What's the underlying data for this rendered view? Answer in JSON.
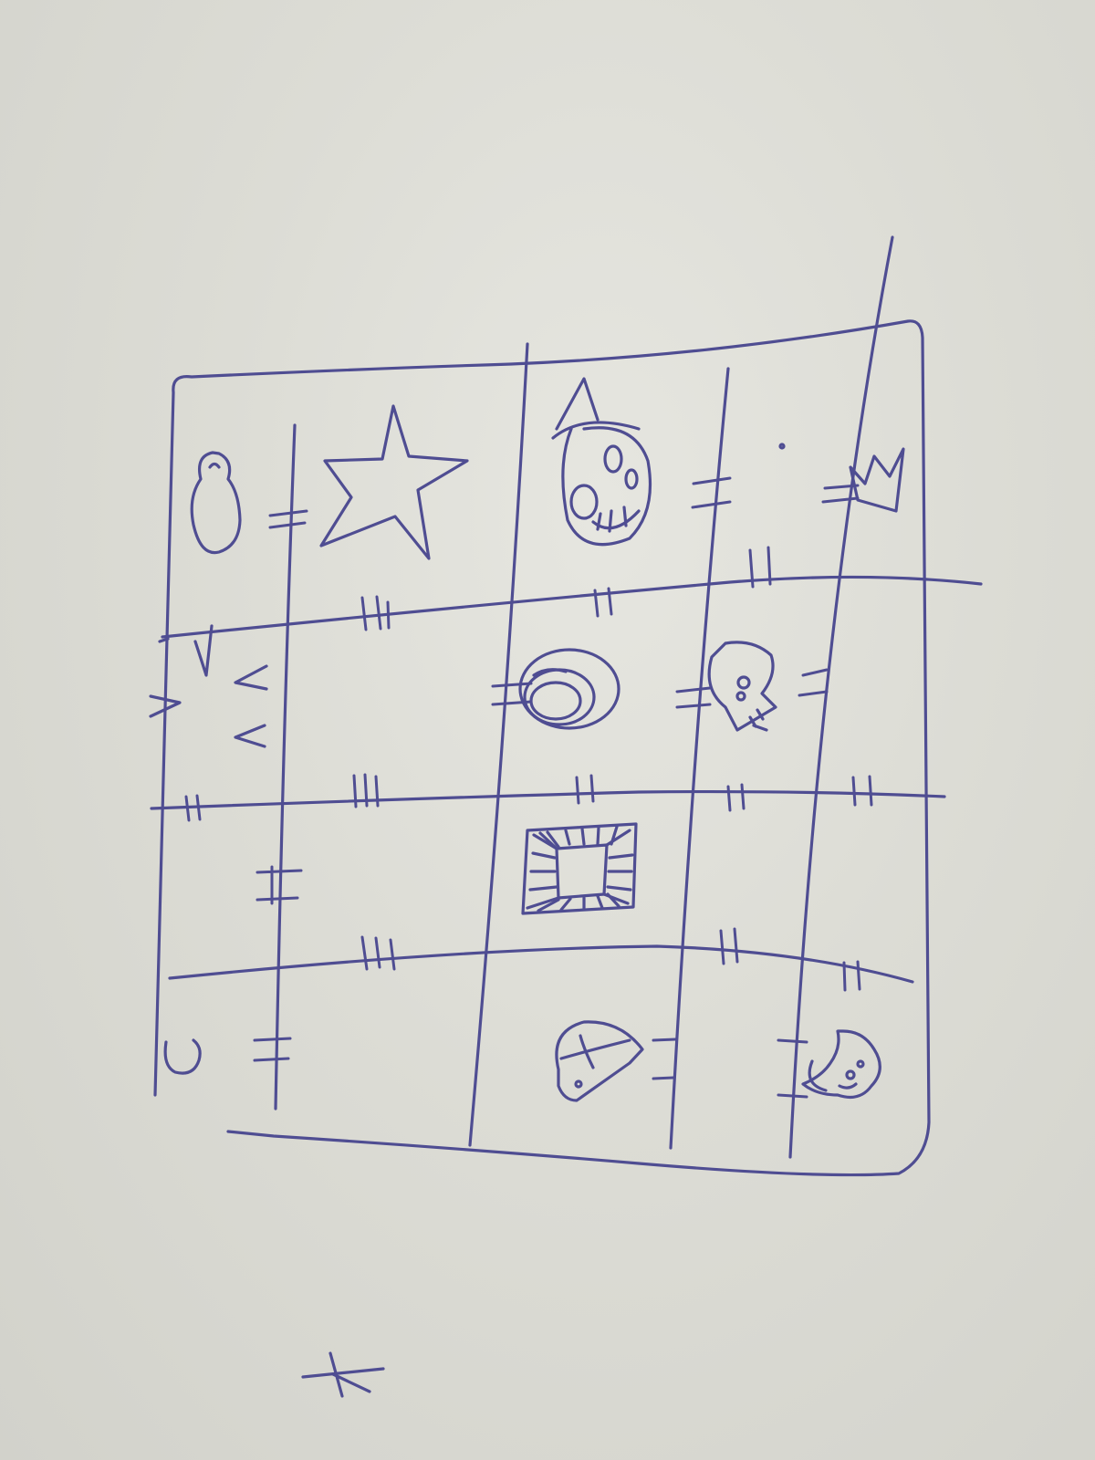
{
  "sheet": {
    "paper_color": "#dcdcd5",
    "ink_color": "#4f4d92"
  },
  "grid": {
    "rows": 4,
    "columns": 5
  },
  "cells": [
    {
      "row": 1,
      "col": 1,
      "symbol": "pear-figure"
    },
    {
      "row": 1,
      "col": 2,
      "symbol": "star"
    },
    {
      "row": 1,
      "col": 3,
      "symbol": "witch-head"
    },
    {
      "row": 1,
      "col": 5,
      "symbol": "crown"
    },
    {
      "row": 2,
      "col": 1,
      "symbol": "triangle-marks"
    },
    {
      "row": 2,
      "col": 3,
      "symbol": "coil-ring"
    },
    {
      "row": 2,
      "col": 4,
      "symbol": "skull"
    },
    {
      "row": 3,
      "col": 3,
      "symbol": "hatched-square"
    },
    {
      "row": 4,
      "col": 1,
      "symbol": "hook"
    },
    {
      "row": 4,
      "col": 3,
      "symbol": "cap"
    },
    {
      "row": 4,
      "col": 5,
      "symbol": "crescent-moon"
    }
  ],
  "corner_mark": {
    "symbol": "crossed-glyph"
  }
}
